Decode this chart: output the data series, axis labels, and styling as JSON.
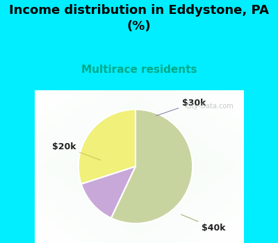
{
  "title": "Income distribution in Eddystone, PA\n(%)",
  "subtitle": "Multirace residents",
  "title_fontsize": 13,
  "subtitle_fontsize": 11,
  "title_color": "#000000",
  "subtitle_color": "#00aa88",
  "slices": [
    {
      "label": "$20k",
      "value": 30,
      "color": "#f0f07a"
    },
    {
      "label": "$30k",
      "value": 13,
      "color": "#c8a8d8"
    },
    {
      "label": "$40k",
      "value": 57,
      "color": "#c8d4a0"
    }
  ],
  "bg_color": "#00eeff",
  "chart_bg_color": "#e0f0e8",
  "startangle": 90,
  "watermark": "City-Data.com",
  "fig_width": 4.0,
  "fig_height": 3.5,
  "dpi": 100
}
